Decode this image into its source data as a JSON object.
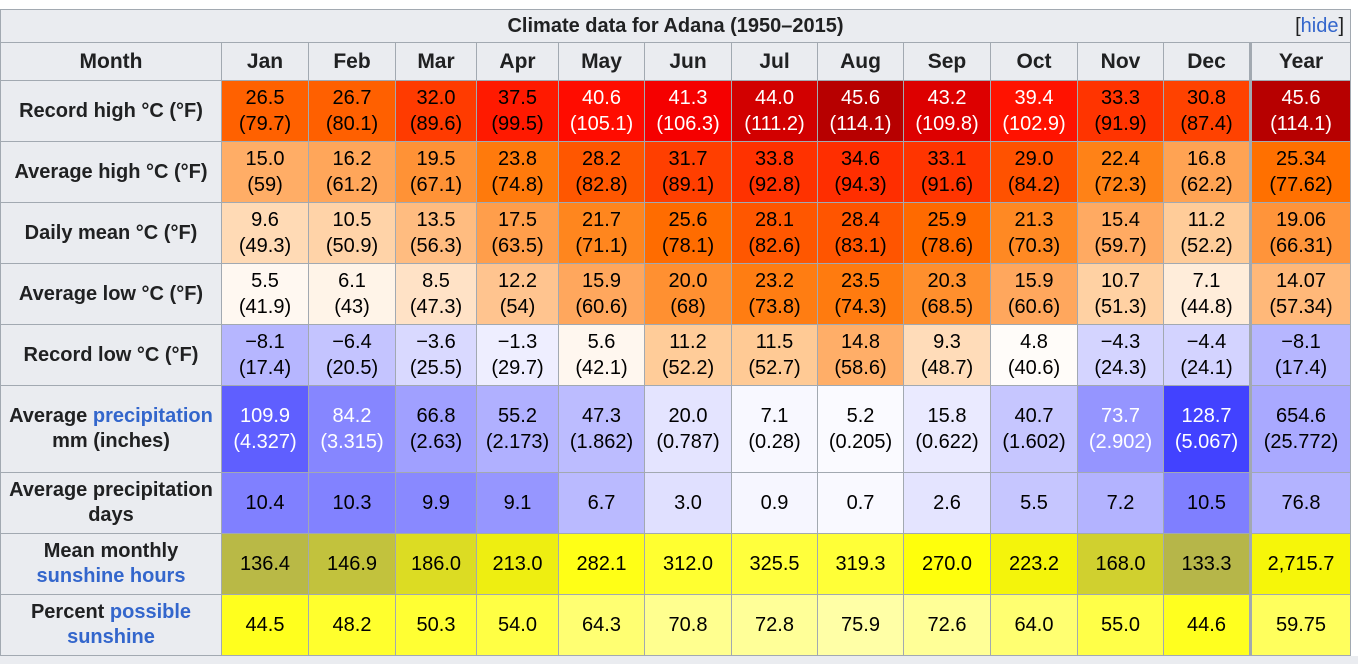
{
  "title": "Climate data for Adana (1950–2015)",
  "hide_label": "hide",
  "header": {
    "month_label": "Month",
    "months": [
      "Jan",
      "Feb",
      "Mar",
      "Apr",
      "May",
      "Jun",
      "Jul",
      "Aug",
      "Sep",
      "Oct",
      "Nov",
      "Dec",
      "Year"
    ]
  },
  "rows": [
    {
      "label_parts": [
        {
          "text": "Record high °C (°F)",
          "link": false
        }
      ],
      "cells": [
        {
          "v1": "26.5",
          "v2": "(79.7)",
          "bg": "#ff6100",
          "fg": "#000000"
        },
        {
          "v1": "26.7",
          "v2": "(80.1)",
          "bg": "#ff6000",
          "fg": "#000000"
        },
        {
          "v1": "32.0",
          "v2": "(89.6)",
          "bg": "#ff3b00",
          "fg": "#000000"
        },
        {
          "v1": "37.5",
          "v2": "(99.5)",
          "bg": "#ff1a00",
          "fg": "#000000"
        },
        {
          "v1": "40.6",
          "v2": "(105.1)",
          "bg": "#ff0c00",
          "fg": "#ffffff"
        },
        {
          "v1": "41.3",
          "v2": "(106.3)",
          "bg": "#f50000",
          "fg": "#ffffff"
        },
        {
          "v1": "44.0",
          "v2": "(111.2)",
          "bg": "#d20000",
          "fg": "#ffffff"
        },
        {
          "v1": "45.6",
          "v2": "(114.1)",
          "bg": "#b70000",
          "fg": "#ffffff"
        },
        {
          "v1": "43.2",
          "v2": "(109.8)",
          "bg": "#dd0000",
          "fg": "#ffffff"
        },
        {
          "v1": "39.4",
          "v2": "(102.9)",
          "bg": "#ff1200",
          "fg": "#ffffff"
        },
        {
          "v1": "33.3",
          "v2": "(91.9)",
          "bg": "#ff3400",
          "fg": "#000000"
        },
        {
          "v1": "30.8",
          "v2": "(87.4)",
          "bg": "#ff4200",
          "fg": "#000000"
        },
        {
          "v1": "45.6",
          "v2": "(114.1)",
          "bg": "#b70000",
          "fg": "#ffffff"
        }
      ]
    },
    {
      "label_parts": [
        {
          "text": "Average high °C (°F)",
          "link": false
        }
      ],
      "cells": [
        {
          "v1": "15.0",
          "v2": "(59)",
          "bg": "#ffad66",
          "fg": "#000000"
        },
        {
          "v1": "16.2",
          "v2": "(61.2)",
          "bg": "#ffa65a",
          "fg": "#000000"
        },
        {
          "v1": "19.5",
          "v2": "(67.1)",
          "bg": "#ff9236",
          "fg": "#000000"
        },
        {
          "v1": "23.8",
          "v2": "(74.8)",
          "bg": "#ff7a0c",
          "fg": "#000000"
        },
        {
          "v1": "28.2",
          "v2": "(82.8)",
          "bg": "#ff5700",
          "fg": "#000000"
        },
        {
          "v1": "31.7",
          "v2": "(89.1)",
          "bg": "#ff3f00",
          "fg": "#000000"
        },
        {
          "v1": "33.8",
          "v2": "(92.8)",
          "bg": "#ff3200",
          "fg": "#000000"
        },
        {
          "v1": "34.6",
          "v2": "(94.3)",
          "bg": "#ff2e00",
          "fg": "#000000"
        },
        {
          "v1": "33.1",
          "v2": "(91.6)",
          "bg": "#ff3500",
          "fg": "#000000"
        },
        {
          "v1": "29.0",
          "v2": "(84.2)",
          "bg": "#ff5200",
          "fg": "#000000"
        },
        {
          "v1": "22.4",
          "v2": "(72.3)",
          "bg": "#ff8217",
          "fg": "#000000"
        },
        {
          "v1": "16.8",
          "v2": "(62.2)",
          "bg": "#ffa353",
          "fg": "#000000"
        },
        {
          "v1": "25.34",
          "v2": "(77.62)",
          "bg": "#ff7000",
          "fg": "#000000"
        }
      ]
    },
    {
      "label_parts": [
        {
          "text": "Daily mean °C (°F)",
          "link": false
        }
      ],
      "cells": [
        {
          "v1": "9.6",
          "v2": "(49.3)",
          "bg": "#ffdab5",
          "fg": "#000000"
        },
        {
          "v1": "10.5",
          "v2": "(50.9)",
          "bg": "#ffd3a8",
          "fg": "#000000"
        },
        {
          "v1": "13.5",
          "v2": "(56.3)",
          "bg": "#ffbc80",
          "fg": "#000000"
        },
        {
          "v1": "17.5",
          "v2": "(63.5)",
          "bg": "#ff9e4b",
          "fg": "#000000"
        },
        {
          "v1": "21.7",
          "v2": "(71.1)",
          "bg": "#ff861e",
          "fg": "#000000"
        },
        {
          "v1": "25.6",
          "v2": "(78.1)",
          "bg": "#ff6c00",
          "fg": "#000000"
        },
        {
          "v1": "28.1",
          "v2": "(82.6)",
          "bg": "#ff5700",
          "fg": "#000000"
        },
        {
          "v1": "28.4",
          "v2": "(83.1)",
          "bg": "#ff5500",
          "fg": "#000000"
        },
        {
          "v1": "25.9",
          "v2": "(78.6)",
          "bg": "#ff6a00",
          "fg": "#000000"
        },
        {
          "v1": "21.3",
          "v2": "(70.3)",
          "bg": "#ff8923",
          "fg": "#000000"
        },
        {
          "v1": "15.4",
          "v2": "(59.7)",
          "bg": "#ffaa62",
          "fg": "#000000"
        },
        {
          "v1": "11.2",
          "v2": "(52.2)",
          "bg": "#ffcc99",
          "fg": "#000000"
        },
        {
          "v1": "19.06",
          "v2": "(66.31)",
          "bg": "#ff943a",
          "fg": "#000000"
        }
      ]
    },
    {
      "label_parts": [
        {
          "text": "Average low °C (°F)",
          "link": false
        }
      ],
      "cells": [
        {
          "v1": "5.5",
          "v2": "(41.9)",
          "bg": "#fff8f1",
          "fg": "#000000"
        },
        {
          "v1": "6.1",
          "v2": "(43)",
          "bg": "#fff4e8",
          "fg": "#000000"
        },
        {
          "v1": "8.5",
          "v2": "(47.3)",
          "bg": "#ffe2c6",
          "fg": "#000000"
        },
        {
          "v1": "12.2",
          "v2": "(54)",
          "bg": "#ffc48f",
          "fg": "#000000"
        },
        {
          "v1": "15.9",
          "v2": "(60.6)",
          "bg": "#ffa75d",
          "fg": "#000000"
        },
        {
          "v1": "20.0",
          "v2": "(68)",
          "bg": "#ff9031",
          "fg": "#000000"
        },
        {
          "v1": "23.2",
          "v2": "(73.8)",
          "bg": "#ff7d12",
          "fg": "#000000"
        },
        {
          "v1": "23.5",
          "v2": "(74.3)",
          "bg": "#ff7b0f",
          "fg": "#000000"
        },
        {
          "v1": "20.3",
          "v2": "(68.5)",
          "bg": "#ff8f2d",
          "fg": "#000000"
        },
        {
          "v1": "15.9",
          "v2": "(60.6)",
          "bg": "#ffa75d",
          "fg": "#000000"
        },
        {
          "v1": "10.7",
          "v2": "(51.3)",
          "bg": "#ffd1a3",
          "fg": "#000000"
        },
        {
          "v1": "7.1",
          "v2": "(44.8)",
          "bg": "#ffedda",
          "fg": "#000000"
        },
        {
          "v1": "14.07",
          "v2": "(57.34)",
          "bg": "#ffb879",
          "fg": "#000000"
        }
      ]
    },
    {
      "label_parts": [
        {
          "text": "Record low °C (°F)",
          "link": false
        }
      ],
      "cells": [
        {
          "v1": "−8.1",
          "v2": "(17.4)",
          "bg": "#b6b6ff",
          "fg": "#000000"
        },
        {
          "v1": "−6.4",
          "v2": "(20.5)",
          "bg": "#c4c4ff",
          "fg": "#000000"
        },
        {
          "v1": "−3.6",
          "v2": "(25.5)",
          "bg": "#d9d9ff",
          "fg": "#000000"
        },
        {
          "v1": "−1.3",
          "v2": "(29.7)",
          "bg": "#eeeeff",
          "fg": "#000000"
        },
        {
          "v1": "5.6",
          "v2": "(42.1)",
          "bg": "#fff7ef",
          "fg": "#000000"
        },
        {
          "v1": "11.2",
          "v2": "(52.2)",
          "bg": "#ffcc99",
          "fg": "#000000"
        },
        {
          "v1": "11.5",
          "v2": "(52.7)",
          "bg": "#ffca95",
          "fg": "#000000"
        },
        {
          "v1": "14.8",
          "v2": "(58.6)",
          "bg": "#ffae68",
          "fg": "#000000"
        },
        {
          "v1": "9.3",
          "v2": "(48.7)",
          "bg": "#ffdcb9",
          "fg": "#000000"
        },
        {
          "v1": "4.8",
          "v2": "(40.6)",
          "bg": "#fffcf9",
          "fg": "#000000"
        },
        {
          "v1": "−4.3",
          "v2": "(24.3)",
          "bg": "#d4d4ff",
          "fg": "#000000"
        },
        {
          "v1": "−4.4",
          "v2": "(24.1)",
          "bg": "#d3d3ff",
          "fg": "#000000"
        },
        {
          "v1": "−8.1",
          "v2": "(17.4)",
          "bg": "#b6b6ff",
          "fg": "#000000"
        }
      ]
    },
    {
      "label_parts": [
        {
          "text": "Average ",
          "link": false
        },
        {
          "text": "precipitation",
          "link": true
        },
        {
          "text": " mm (inches)",
          "link": false
        }
      ],
      "cells": [
        {
          "v1": "109.9",
          "v2": "(4.327)",
          "bg": "#5f5fff",
          "fg": "#ffffff"
        },
        {
          "v1": "84.2",
          "v2": "(3.315)",
          "bg": "#8686ff",
          "fg": "#ffffff"
        },
        {
          "v1": "66.8",
          "v2": "(2.63)",
          "bg": "#a0a0ff",
          "fg": "#000000"
        },
        {
          "v1": "55.2",
          "v2": "(2.173)",
          "bg": "#b0b0ff",
          "fg": "#000000"
        },
        {
          "v1": "47.3",
          "v2": "(1.862)",
          "bg": "#bcbcff",
          "fg": "#000000"
        },
        {
          "v1": "20.0",
          "v2": "(0.787)",
          "bg": "#e4e4ff",
          "fg": "#000000"
        },
        {
          "v1": "7.1",
          "v2": "(0.28)",
          "bg": "#f8f8ff",
          "fg": "#000000"
        },
        {
          "v1": "5.2",
          "v2": "(0.205)",
          "bg": "#fafaff",
          "fg": "#000000"
        },
        {
          "v1": "15.8",
          "v2": "(0.622)",
          "bg": "#eaeaff",
          "fg": "#000000"
        },
        {
          "v1": "40.7",
          "v2": "(1.602)",
          "bg": "#c6c6ff",
          "fg": "#000000"
        },
        {
          "v1": "73.7",
          "v2": "(2.902)",
          "bg": "#9595ff",
          "fg": "#ffffff"
        },
        {
          "v1": "128.7",
          "v2": "(5.067)",
          "bg": "#4242ff",
          "fg": "#ffffff"
        },
        {
          "v1": "654.6",
          "v2": "(25.772)",
          "bg": "#a9a9ff",
          "fg": "#000000"
        }
      ]
    },
    {
      "label_parts": [
        {
          "text": "Average precipitation days",
          "link": false
        }
      ],
      "cells": [
        {
          "v1": "10.4",
          "v2": "",
          "bg": "#8080ff",
          "fg": "#000000"
        },
        {
          "v1": "10.3",
          "v2": "",
          "bg": "#8282ff",
          "fg": "#000000"
        },
        {
          "v1": "9.9",
          "v2": "",
          "bg": "#8989ff",
          "fg": "#000000"
        },
        {
          "v1": "9.1",
          "v2": "",
          "bg": "#9696ff",
          "fg": "#000000"
        },
        {
          "v1": "6.7",
          "v2": "",
          "bg": "#babaff",
          "fg": "#000000"
        },
        {
          "v1": "3.0",
          "v2": "",
          "bg": "#e0e0ff",
          "fg": "#000000"
        },
        {
          "v1": "0.9",
          "v2": "",
          "bg": "#f6f6ff",
          "fg": "#000000"
        },
        {
          "v1": "0.7",
          "v2": "",
          "bg": "#f9f9ff",
          "fg": "#000000"
        },
        {
          "v1": "2.6",
          "v2": "",
          "bg": "#e4e4ff",
          "fg": "#000000"
        },
        {
          "v1": "5.5",
          "v2": "",
          "bg": "#c6c6ff",
          "fg": "#000000"
        },
        {
          "v1": "7.2",
          "v2": "",
          "bg": "#b3b3ff",
          "fg": "#000000"
        },
        {
          "v1": "10.5",
          "v2": "",
          "bg": "#7f7fff",
          "fg": "#000000"
        },
        {
          "v1": "76.8",
          "v2": "",
          "bg": "#b3b3ff",
          "fg": "#000000"
        }
      ]
    },
    {
      "label_parts": [
        {
          "text": "Mean monthly ",
          "link": false
        },
        {
          "text": "sunshine hours",
          "link": true
        }
      ],
      "cells": [
        {
          "v1": "136.4",
          "v2": "",
          "bg": "#b9b946",
          "fg": "#000000"
        },
        {
          "v1": "146.9",
          "v2": "",
          "bg": "#c2c23d",
          "fg": "#000000"
        },
        {
          "v1": "186.0",
          "v2": "",
          "bg": "#dcdc23",
          "fg": "#000000"
        },
        {
          "v1": "213.0",
          "v2": "",
          "bg": "#eeee11",
          "fg": "#000000"
        },
        {
          "v1": "282.1",
          "v2": "",
          "bg": "#ffff16",
          "fg": "#000000"
        },
        {
          "v1": "312.0",
          "v2": "",
          "bg": "#ffff30",
          "fg": "#000000"
        },
        {
          "v1": "325.5",
          "v2": "",
          "bg": "#ffff3c",
          "fg": "#000000"
        },
        {
          "v1": "319.3",
          "v2": "",
          "bg": "#ffff37",
          "fg": "#000000"
        },
        {
          "v1": "270.0",
          "v2": "",
          "bg": "#ffff0c",
          "fg": "#000000"
        },
        {
          "v1": "223.2",
          "v2": "",
          "bg": "#f4f40b",
          "fg": "#000000"
        },
        {
          "v1": "168.0",
          "v2": "",
          "bg": "#d0d02f",
          "fg": "#000000"
        },
        {
          "v1": "133.3",
          "v2": "",
          "bg": "#b6b649",
          "fg": "#000000"
        },
        {
          "v1": "2,715.7",
          "v2": "",
          "bg": "#f6f609",
          "fg": "#000000"
        }
      ]
    },
    {
      "label_parts": [
        {
          "text": "Percent ",
          "link": false
        },
        {
          "text": "possible sunshine",
          "link": true
        }
      ],
      "cells": [
        {
          "v1": "44.5",
          "v2": "",
          "bg": "#ffff1e",
          "fg": "#000000"
        },
        {
          "v1": "48.2",
          "v2": "",
          "bg": "#ffff2d",
          "fg": "#000000"
        },
        {
          "v1": "50.3",
          "v2": "",
          "bg": "#ffff33",
          "fg": "#000000"
        },
        {
          "v1": "54.0",
          "v2": "",
          "bg": "#ffff44",
          "fg": "#000000"
        },
        {
          "v1": "64.3",
          "v2": "",
          "bg": "#ffff72",
          "fg": "#000000"
        },
        {
          "v1": "70.8",
          "v2": "",
          "bg": "#ffff8f",
          "fg": "#000000"
        },
        {
          "v1": "72.8",
          "v2": "",
          "bg": "#ffff98",
          "fg": "#000000"
        },
        {
          "v1": "75.9",
          "v2": "",
          "bg": "#ffffa6",
          "fg": "#000000"
        },
        {
          "v1": "72.6",
          "v2": "",
          "bg": "#ffff97",
          "fg": "#000000"
        },
        {
          "v1": "64.0",
          "v2": "",
          "bg": "#ffff71",
          "fg": "#000000"
        },
        {
          "v1": "55.0",
          "v2": "",
          "bg": "#ffff48",
          "fg": "#000000"
        },
        {
          "v1": "44.6",
          "v2": "",
          "bg": "#ffff1f",
          "fg": "#000000"
        },
        {
          "v1": "59.75",
          "v2": "",
          "bg": "#ffff5d",
          "fg": "#000000"
        }
      ]
    }
  ]
}
